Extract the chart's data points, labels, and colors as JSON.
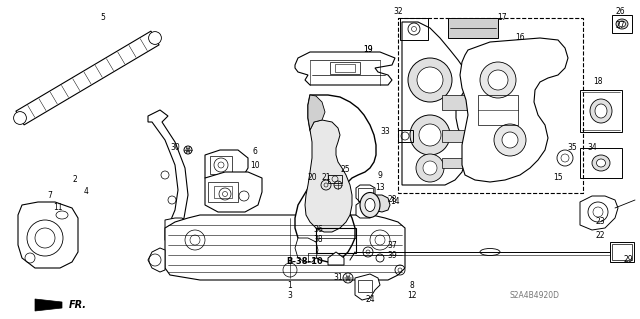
{
  "bg_color": "#ffffff",
  "fig_width": 6.4,
  "fig_height": 3.19,
  "dpi": 100,
  "watermark": "S2A4B4920D",
  "ref_text": "B-38-10"
}
